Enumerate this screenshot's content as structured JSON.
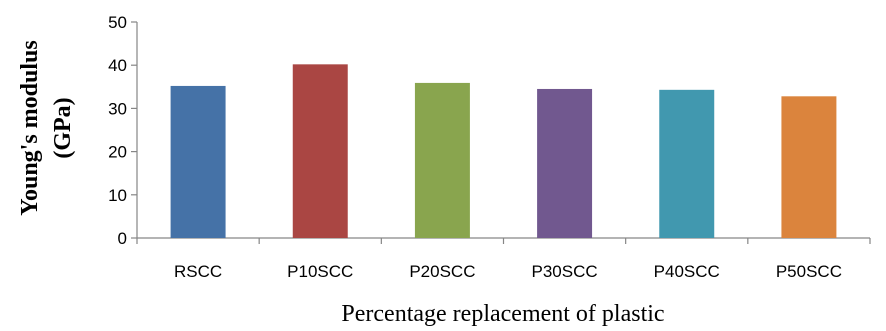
{
  "chart_data": {
    "type": "bar",
    "categories": [
      "RSCC",
      "P10SCC",
      "P20SCC",
      "P30SCC",
      "P40SCC",
      "P50SCC"
    ],
    "values": [
      35.2,
      40.2,
      35.9,
      34.5,
      34.3,
      32.8
    ],
    "colors": [
      "#4572A7",
      "#AA4643",
      "#89A54E",
      "#71588F",
      "#4198AF",
      "#DB843D"
    ],
    "title": "",
    "xlabel": "Percentage replacement of plastic",
    "ylabel_line1": "Young's modulus",
    "ylabel_line2": "(GPa)",
    "yticks": [
      0,
      10,
      20,
      30,
      40,
      50
    ],
    "ylim": [
      0,
      50
    ],
    "grid": false,
    "legend": false
  }
}
